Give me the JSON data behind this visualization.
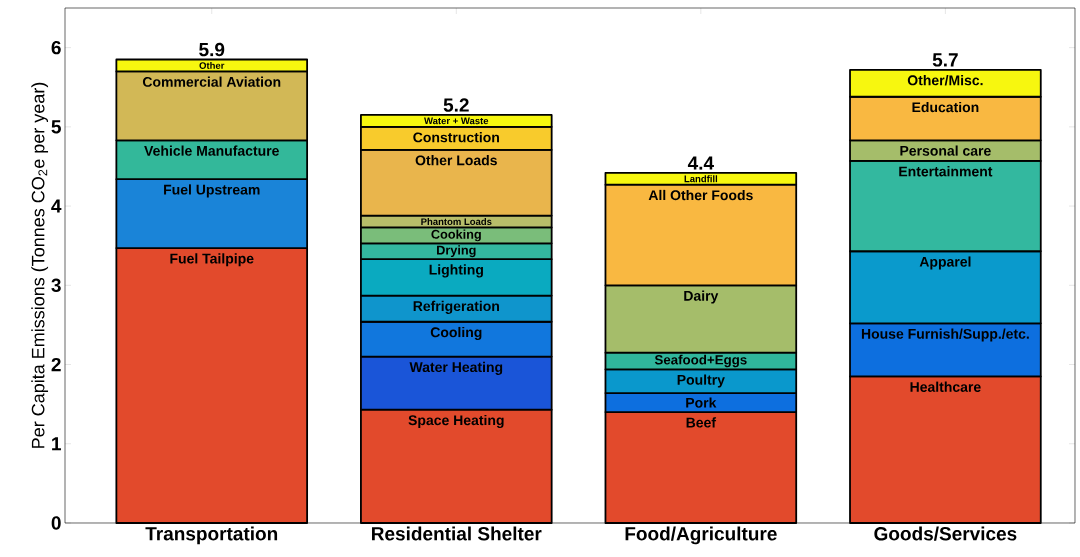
{
  "chart_data": {
    "type": "bar",
    "stacked": true,
    "ylabel": "Per Capita Emissions (Tonnes CO$_{2}$e per year)",
    "categories": [
      "Transportation",
      "Residential Shelter",
      "Food/Agriculture",
      "Goods/Services"
    ],
    "ylim": [
      0,
      6.5
    ],
    "yticks": [
      0,
      1,
      2,
      3,
      4,
      5,
      6
    ],
    "totals": [
      "5.9",
      "5.2",
      "4.4",
      "5.7"
    ],
    "series": [
      {
        "name": "Fuel Tailpipe",
        "color": "#e24a2c",
        "values": [
          3.47,
          null,
          null,
          null
        ]
      },
      {
        "name": "Fuel Upstream",
        "color": "#1a84d8",
        "values": [
          0.87,
          null,
          null,
          null
        ]
      },
      {
        "name": "Vehicle Manufacture",
        "color": "#33b89a",
        "values": [
          0.49,
          null,
          null,
          null
        ]
      },
      {
        "name": "Commercial Aviation",
        "color": "#d2b856",
        "values": [
          0.87,
          null,
          null,
          null
        ]
      },
      {
        "name": "Other",
        "color": "#f7f70f",
        "values": [
          0.15,
          null,
          null,
          null
        ]
      },
      {
        "name": "Space Heating",
        "color": "#e24a2c",
        "values": [
          null,
          1.43,
          null,
          null
        ]
      },
      {
        "name": "Water Heating",
        "color": "#1a55d8",
        "values": [
          null,
          0.67,
          null,
          null
        ]
      },
      {
        "name": "Cooling",
        "color": "#1177dd",
        "values": [
          null,
          0.44,
          null,
          null
        ]
      },
      {
        "name": "Refrigeration",
        "color": "#0f95cc",
        "values": [
          null,
          0.33,
          null,
          null
        ]
      },
      {
        "name": "Lighting",
        "color": "#0aaac0",
        "values": [
          null,
          0.46,
          null,
          null
        ]
      },
      {
        "name": "Drying",
        "color": "#33b8a0",
        "values": [
          null,
          0.2,
          null,
          null
        ]
      },
      {
        "name": "Cooking",
        "color": "#7abd7a",
        "values": [
          null,
          0.2,
          null,
          null
        ]
      },
      {
        "name": "Phantom Loads",
        "color": "#b8bd6a",
        "values": [
          null,
          0.15,
          null,
          null
        ]
      },
      {
        "name": "Other Loads",
        "color": "#e9b54c",
        "values": [
          null,
          0.83,
          null,
          null
        ]
      },
      {
        "name": "Construction",
        "color": "#f8cb2c",
        "values": [
          null,
          0.29,
          null,
          null
        ]
      },
      {
        "name": "Water + Waste",
        "color": "#f7f70f",
        "values": [
          null,
          0.15,
          null,
          null
        ]
      },
      {
        "name": "Beef",
        "color": "#e24a2c",
        "values": [
          null,
          null,
          1.4,
          null
        ]
      },
      {
        "name": "Pork",
        "color": "#0d6fdf",
        "values": [
          null,
          null,
          0.24,
          null
        ]
      },
      {
        "name": "Poultry",
        "color": "#0a98cc",
        "values": [
          null,
          null,
          0.3,
          null
        ]
      },
      {
        "name": "Seafood+Eggs",
        "color": "#30b69c",
        "values": [
          null,
          null,
          0.21,
          null
        ]
      },
      {
        "name": "Dairy",
        "color": "#a5bd6a",
        "values": [
          null,
          null,
          0.85,
          null
        ]
      },
      {
        "name": "All Other Foods",
        "color": "#f9b841",
        "values": [
          null,
          null,
          1.27,
          null
        ]
      },
      {
        "name": "Landfill",
        "color": "#f7f70f",
        "values": [
          null,
          null,
          0.15,
          null
        ]
      },
      {
        "name": "Healthcare",
        "color": "#e24a2c",
        "values": [
          null,
          null,
          null,
          1.85
        ]
      },
      {
        "name": "House Furnish/Supp./etc.",
        "color": "#0d6fdf",
        "values": [
          null,
          null,
          null,
          0.67
        ]
      },
      {
        "name": "Apparel",
        "color": "#0a9acc",
        "values": [
          null,
          null,
          null,
          0.91
        ]
      },
      {
        "name": "Entertainment",
        "color": "#33b89f",
        "values": [
          null,
          null,
          null,
          1.14
        ]
      },
      {
        "name": "Personal care",
        "color": "#a5bd6a",
        "values": [
          null,
          null,
          null,
          0.26
        ]
      },
      {
        "name": "Education",
        "color": "#f9b841",
        "values": [
          null,
          null,
          null,
          0.55
        ]
      },
      {
        "name": "Other/Misc.",
        "color": "#f7f70f",
        "values": [
          null,
          null,
          null,
          0.34
        ]
      }
    ]
  }
}
